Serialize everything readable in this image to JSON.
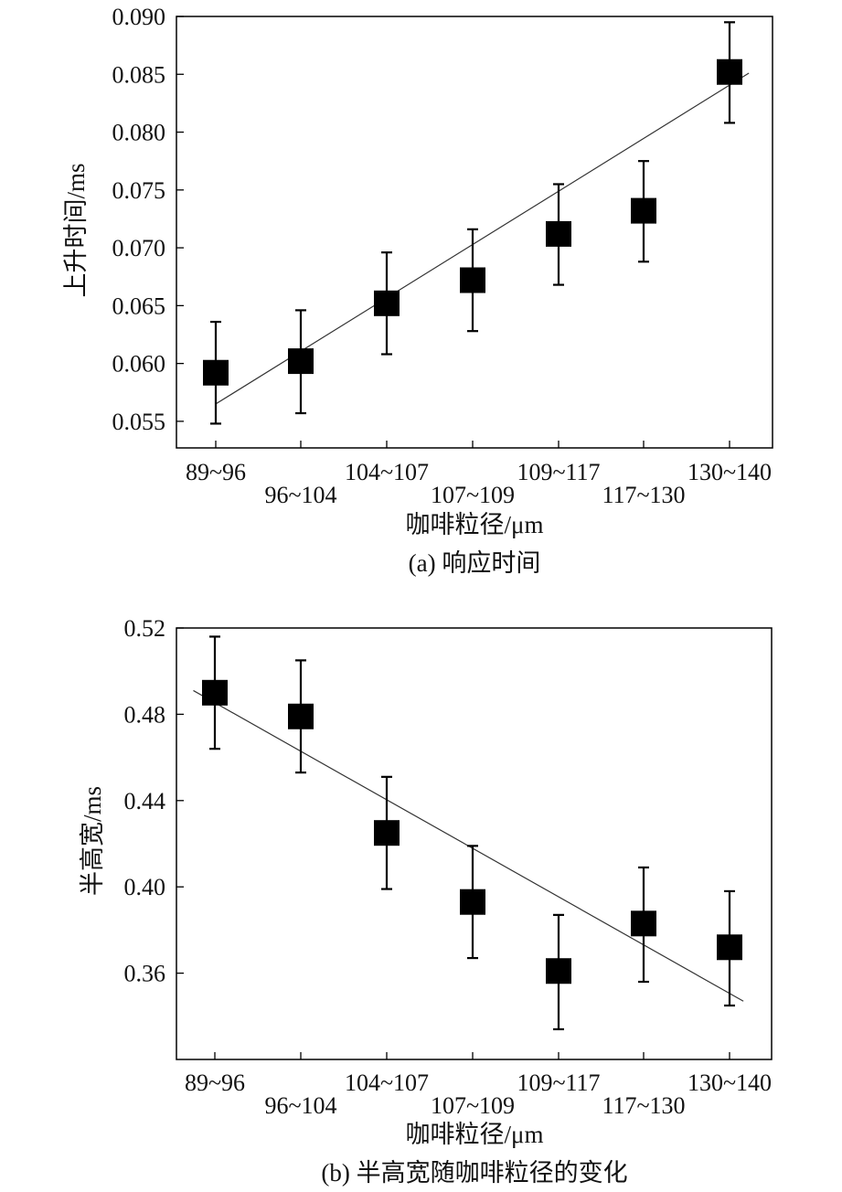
{
  "chart_data": [
    {
      "type": "scatter",
      "categories": [
        "89~96",
        "96~104",
        "104~107",
        "107~109",
        "109~117",
        "117~130",
        "130~140"
      ],
      "values": [
        0.0592,
        0.0602,
        0.0652,
        0.0672,
        0.0712,
        0.0732,
        0.0852
      ],
      "error_low": [
        0.0548,
        0.0557,
        0.0608,
        0.0628,
        0.0668,
        0.0688,
        0.0808
      ],
      "error_high": [
        0.0636,
        0.0646,
        0.0696,
        0.0716,
        0.0755,
        0.0775,
        0.0895
      ],
      "fit_line": {
        "start": [
          0,
          0.0565
        ],
        "end": [
          6.27,
          0.0851
        ]
      },
      "xlabel": "咖啡粒径/μm",
      "ylabel": "上升时间/ms",
      "caption": "(a) 响应时间",
      "ylim": [
        0.0527,
        0.09
      ],
      "yticks": [
        "0.090",
        "0.085",
        "0.080",
        "0.075",
        "0.070",
        "0.065",
        "0.060",
        "0.055"
      ],
      "ytick_values": [
        0.09,
        0.085,
        0.08,
        0.075,
        0.07,
        0.065,
        0.06,
        0.055
      ],
      "grid": false,
      "marker": "filled-square",
      "color": "#000000"
    },
    {
      "type": "scatter",
      "categories": [
        "89~96",
        "96~104",
        "104~107",
        "107~109",
        "109~117",
        "117~130",
        "130~140"
      ],
      "values": [
        0.49,
        0.479,
        0.425,
        0.393,
        0.361,
        0.383,
        0.372
      ],
      "error_low": [
        0.464,
        0.453,
        0.399,
        0.367,
        0.334,
        0.356,
        0.345
      ],
      "error_high": [
        0.516,
        0.505,
        0.451,
        0.419,
        0.387,
        0.409,
        0.398
      ],
      "fit_line": {
        "start": [
          -0.25,
          0.491
        ],
        "end": [
          6.15,
          0.347
        ]
      },
      "xlabel": "咖啡粒径/μm",
      "ylabel": "半高宽/ms",
      "caption": "(b) 半高宽随咖啡粒径的变化",
      "ylim": [
        0.32,
        0.52
      ],
      "yticks": [
        "0.52",
        "0.48",
        "0.44",
        "0.40",
        "0.36"
      ],
      "ytick_values": [
        0.52,
        0.48,
        0.44,
        0.4,
        0.36
      ],
      "grid": false,
      "marker": "filled-square",
      "color": "#000000"
    }
  ]
}
